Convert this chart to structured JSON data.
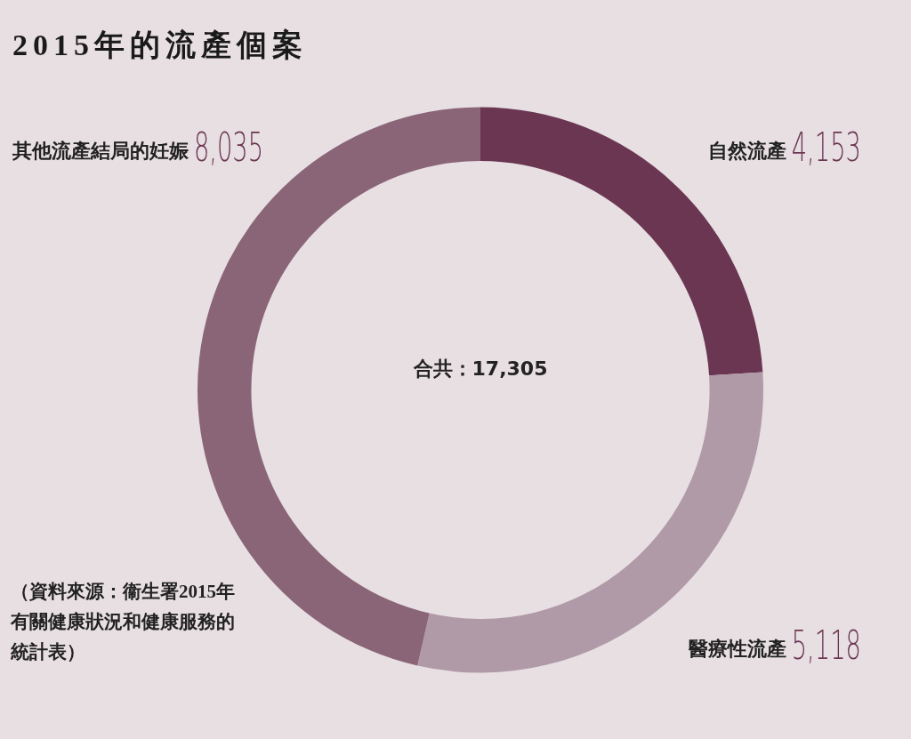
{
  "chart_data": {
    "type": "donut",
    "title": "2015年的流產個案",
    "categories": [
      "自然流產",
      "醫療性流產",
      "其他流產結局的妊娠"
    ],
    "values": [
      4153,
      5118,
      8035
    ],
    "colors": [
      "#6b3652",
      "#b09aa8",
      "#8a6577"
    ],
    "value_labels": [
      "4,153",
      "5,118",
      "8,035"
    ],
    "legend": false,
    "annotations": [
      "合共：17,305",
      "（資料來源：衞生署2015年有關健康狀況和健康服務的統計表）"
    ]
  }
}
